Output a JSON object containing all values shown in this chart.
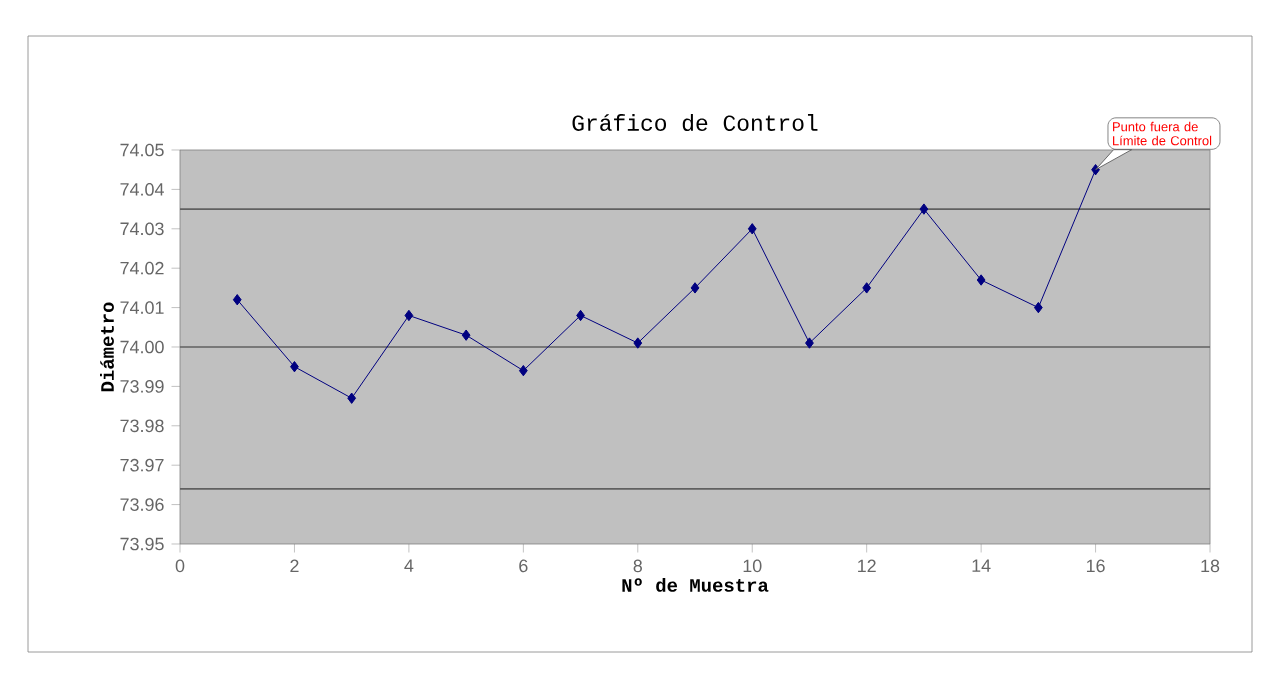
{
  "chart_data": {
    "type": "line",
    "title": "Gráfico de Control",
    "xlabel": "Nº de Muestra",
    "ylabel": "Diámetro",
    "x": [
      1,
      2,
      3,
      4,
      5,
      6,
      7,
      8,
      9,
      10,
      11,
      12,
      13,
      14,
      15,
      16
    ],
    "series": [
      {
        "color": "#000080",
        "values": [
          74.012,
          73.995,
          73.987,
          74.008,
          74.003,
          73.994,
          74.008,
          74.001,
          74.015,
          74.03,
          74.001,
          74.015,
          74.035,
          74.017,
          74.01,
          74.045
        ]
      }
    ],
    "xlim": [
      0,
      18
    ],
    "xticks": [
      0,
      2,
      4,
      6,
      8,
      10,
      12,
      14,
      16,
      18
    ],
    "ylim": [
      73.95,
      74.05
    ],
    "yticks": [
      73.95,
      73.96,
      73.97,
      73.98,
      73.99,
      {
        "value": 74,
        "label": "74.00"
      },
      74.01,
      74.02,
      74.03,
      74.04,
      74.05
    ],
    "ref_lines": [
      {
        "axis": "y",
        "value": 74.035,
        "color": "#606060"
      },
      {
        "axis": "y",
        "value": 74.0,
        "color": "#606060"
      },
      {
        "axis": "y",
        "value": 73.964,
        "color": "#606060"
      }
    ],
    "annotations": [
      {
        "text": "Punto fuera de Límite de Control",
        "x": 16,
        "y": 74.045
      }
    ],
    "marker": "diamond",
    "line_style": "solid",
    "grid": false
  }
}
